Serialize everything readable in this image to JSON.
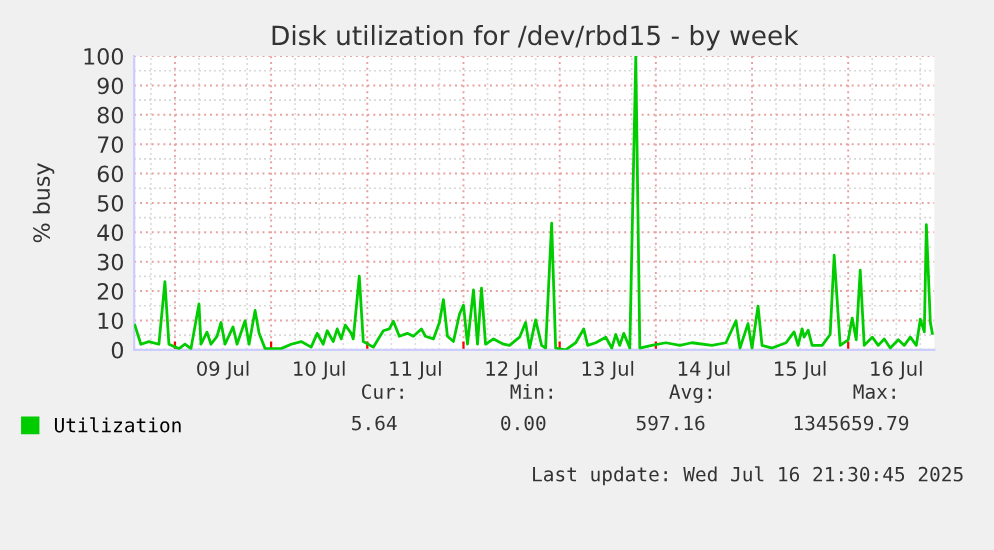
{
  "chart_data": {
    "type": "line",
    "title": "Disk utilization for /dev/rbd15 - by week",
    "ylabel": "% busy",
    "x": [
      "2025-07-08T14:00",
      "2025-07-08T15:30",
      "2025-07-08T17:30",
      "2025-07-08T20:00",
      "2025-07-08T21:30",
      "2025-07-08T22:30",
      "2025-07-09T01:00",
      "2025-07-09T02:30",
      "2025-07-09T04:00",
      "2025-07-09T06:00",
      "2025-07-09T06:30",
      "2025-07-09T08:00",
      "2025-07-09T09:00",
      "2025-07-09T10:30",
      "2025-07-09T11:30",
      "2025-07-09T12:30",
      "2025-07-09T14:30",
      "2025-07-09T15:30",
      "2025-07-09T17:30",
      "2025-07-09T18:30",
      "2025-07-09T20:00",
      "2025-07-09T21:00",
      "2025-07-09T22:30",
      "2025-07-10T02:30",
      "2025-07-10T05:00",
      "2025-07-10T07:30",
      "2025-07-10T10:00",
      "2025-07-10T11:30",
      "2025-07-10T13:00",
      "2025-07-10T14:00",
      "2025-07-10T15:30",
      "2025-07-10T16:30",
      "2025-07-10T17:30",
      "2025-07-10T18:30",
      "2025-07-10T20:00",
      "2025-07-10T20:30",
      "2025-07-10T22:00",
      "2025-07-10T23:00",
      "2025-07-11T01:30",
      "2025-07-11T04:00",
      "2025-07-11T05:30",
      "2025-07-11T06:30",
      "2025-07-11T08:00",
      "2025-07-11T10:00",
      "2025-07-11T11:30",
      "2025-07-11T13:30",
      "2025-07-11T14:30",
      "2025-07-11T16:30",
      "2025-07-11T18:00",
      "2025-07-11T19:00",
      "2025-07-11T20:00",
      "2025-07-11T21:30",
      "2025-07-11T23:00",
      "2025-07-12T00:00",
      "2025-07-12T01:00",
      "2025-07-12T02:30",
      "2025-07-12T03:30",
      "2025-07-12T04:30",
      "2025-07-12T05:30",
      "2025-07-12T07:30",
      "2025-07-12T10:00",
      "2025-07-12T11:30",
      "2025-07-12T14:00",
      "2025-07-12T15:30",
      "2025-07-12T16:30",
      "2025-07-12T18:00",
      "2025-07-12T19:30",
      "2025-07-12T20:30",
      "2025-07-12T22:00",
      "2025-07-12T23:00",
      "2025-07-13T01:30",
      "2025-07-13T04:00",
      "2025-07-13T06:00",
      "2025-07-13T07:00",
      "2025-07-13T09:00",
      "2025-07-13T11:30",
      "2025-07-13T13:00",
      "2025-07-13T14:00",
      "2025-07-13T15:00",
      "2025-07-13T16:00",
      "2025-07-13T17:30",
      "2025-07-13T19:00",
      "2025-07-13T20:00",
      "2025-07-13T23:00",
      "2025-07-14T02:30",
      "2025-07-14T06:00",
      "2025-07-14T09:00",
      "2025-07-14T14:00",
      "2025-07-14T17:30",
      "2025-07-14T20:00",
      "2025-07-14T21:00",
      "2025-07-14T23:00",
      "2025-07-15T00:00",
      "2025-07-15T01:30",
      "2025-07-15T02:30",
      "2025-07-15T05:00",
      "2025-07-15T08:30",
      "2025-07-15T10:30",
      "2025-07-15T11:30",
      "2025-07-15T12:30",
      "2025-07-15T13:00",
      "2025-07-15T14:00",
      "2025-07-15T15:00",
      "2025-07-15T17:30",
      "2025-07-15T19:30",
      "2025-07-15T20:30",
      "2025-07-15T22:00",
      "2025-07-16T00:00",
      "2025-07-16T01:00",
      "2025-07-16T02:00",
      "2025-07-16T03:00",
      "2025-07-16T04:00",
      "2025-07-16T06:00",
      "2025-07-16T07:30",
      "2025-07-16T09:00",
      "2025-07-16T10:30",
      "2025-07-16T12:30",
      "2025-07-16T14:00",
      "2025-07-16T15:30",
      "2025-07-16T17:00",
      "2025-07-16T18:00",
      "2025-07-16T19:00",
      "2025-07-16T19:30",
      "2025-07-16T20:30",
      "2025-07-16T21:00"
    ],
    "series": [
      {
        "name": "Utilization",
        "color": "#00cc00",
        "values": [
          8.4,
          1.9,
          2.8,
          1.9,
          23.2,
          1.9,
          0.4,
          1.9,
          0.4,
          15.6,
          1.9,
          6.0,
          1.9,
          4.6,
          9.3,
          1.9,
          7.8,
          1.9,
          9.9,
          1.9,
          13.4,
          5.6,
          0.4,
          0.4,
          1.9,
          2.8,
          0.9,
          5.6,
          1.9,
          6.5,
          2.8,
          7.1,
          3.7,
          8.4,
          5.6,
          3.7,
          25.1,
          2.8,
          0.9,
          6.5,
          7.1,
          9.7,
          4.6,
          5.6,
          4.6,
          7.1,
          4.6,
          3.7,
          9.3,
          17.1,
          4.6,
          2.8,
          12.1,
          15.2,
          1.9,
          20.4,
          1.9,
          21.0,
          1.9,
          3.7,
          1.9,
          1.5,
          4.3,
          9.3,
          0.6,
          10.2,
          1.5,
          0.6,
          43.1,
          0.6,
          0.0,
          2.4,
          7.1,
          1.5,
          2.4,
          4.3,
          0.6,
          5.2,
          1.5,
          5.6,
          0.6,
          100,
          0.6,
          1.5,
          2.4,
          1.5,
          2.4,
          1.5,
          2.4,
          9.9,
          0.6,
          8.9,
          0.6,
          14.9,
          1.5,
          0.6,
          2.4,
          6.1,
          1.5,
          7.1,
          4.3,
          6.7,
          1.5,
          1.5,
          5.2,
          32.2,
          1.5,
          3.4,
          10.8,
          3.4,
          27.1,
          1.5,
          4.3,
          1.5,
          3.7,
          0.6,
          3.4,
          1.5,
          4.3,
          1.5,
          10.4,
          6.1,
          42.6,
          9.3,
          5.6
        ]
      }
    ],
    "xlim": [
      "2025-07-08T13:50",
      "2025-07-16T21:30"
    ],
    "xticks": [
      {
        "value": "2025-07-09T00:00",
        "label": null
      },
      {
        "value": "2025-07-09T12:00",
        "label": "09 Jul"
      },
      {
        "value": "2025-07-10T00:00",
        "label": null
      },
      {
        "value": "2025-07-10T12:00",
        "label": "10 Jul"
      },
      {
        "value": "2025-07-11T00:00",
        "label": null
      },
      {
        "value": "2025-07-11T12:00",
        "label": "11 Jul"
      },
      {
        "value": "2025-07-12T00:00",
        "label": null
      },
      {
        "value": "2025-07-12T12:00",
        "label": "12 Jul"
      },
      {
        "value": "2025-07-13T00:00",
        "label": null
      },
      {
        "value": "2025-07-13T12:00",
        "label": "13 Jul"
      },
      {
        "value": "2025-07-14T00:00",
        "label": null
      },
      {
        "value": "2025-07-14T12:00",
        "label": "14 Jul"
      },
      {
        "value": "2025-07-15T00:00",
        "label": null
      },
      {
        "value": "2025-07-15T12:00",
        "label": "15 Jul"
      },
      {
        "value": "2025-07-16T00:00",
        "label": null
      },
      {
        "value": "2025-07-16T12:00",
        "label": "16 Jul"
      }
    ],
    "ylim": [
      0,
      100
    ],
    "yticks": [
      0,
      10,
      20,
      30,
      40,
      50,
      60,
      70,
      80,
      90,
      100
    ],
    "grid": true,
    "legend": "bottom left",
    "marker": "none",
    "line_style": "solid",
    "annotations": [
      "Cur:",
      "Min:",
      "Avg:",
      "Max:",
      "5.64",
      "0.00",
      "597.16",
      "1345659.79",
      "Last update: Wed Jul 16 21:30:45 2025"
    ]
  }
}
